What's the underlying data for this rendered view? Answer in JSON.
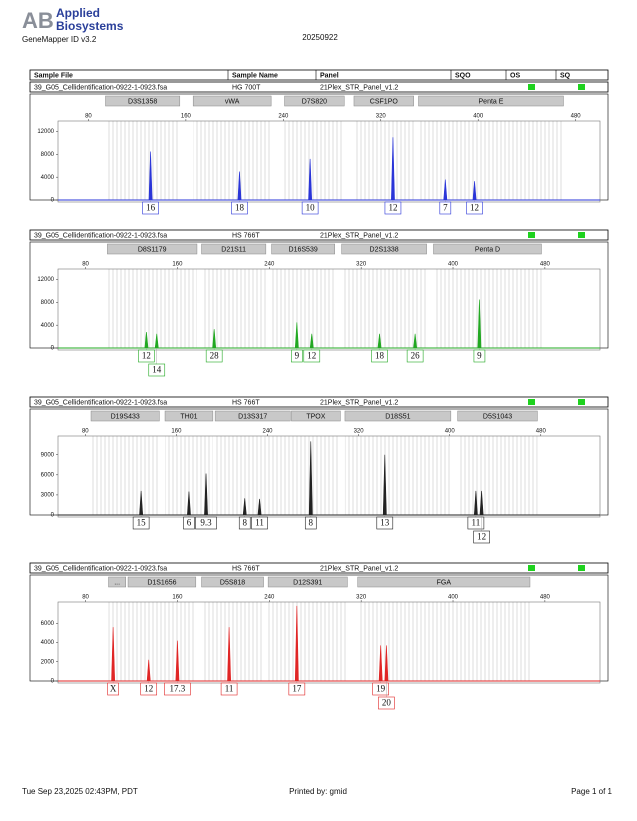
{
  "header": {
    "logo_mark": "AB",
    "logo_line1": "Applied",
    "logo_line2": "Biosystems",
    "software": "GeneMapper ID v3.2",
    "date": "20250922"
  },
  "columns": [
    "Sample File",
    "Sample Name",
    "Panel",
    "SQO",
    "OS",
    "SQ"
  ],
  "panels": [
    {
      "sample_file": "39_G05_Cellidentification-0922-1-0923.fsa",
      "sample_name": "HG 700T",
      "panel": "21Plex_STR_Panel_v1.2",
      "color": "#2a35d8",
      "xlim": [
        55,
        500
      ],
      "xticks": [
        80,
        160,
        240,
        320,
        400,
        480
      ],
      "ylim": [
        0,
        13500
      ],
      "yticks": [
        0,
        4000,
        8000,
        12000
      ],
      "markers": [
        {
          "name": "D3S1358",
          "start": 94,
          "end": 155
        },
        {
          "name": "vWA",
          "start": 166,
          "end": 230
        },
        {
          "name": "D7S820",
          "start": 241,
          "end": 290
        },
        {
          "name": "CSF1PO",
          "start": 298,
          "end": 347
        },
        {
          "name": "Penta E",
          "start": 351,
          "end": 470
        }
      ],
      "peaks": [
        {
          "x": 131,
          "height": 8500,
          "allele": "16"
        },
        {
          "x": 204,
          "height": 5000,
          "allele": "18"
        },
        {
          "x": 262,
          "height": 7200,
          "allele": "10"
        },
        {
          "x": 330,
          "height": 11000,
          "allele": "12"
        },
        {
          "x": 373,
          "height": 3600,
          "allele": "7"
        },
        {
          "x": 397,
          "height": 3300,
          "allele": "12"
        }
      ]
    },
    {
      "sample_file": "39_G05_Cellidentification-0922-1-0923.fsa",
      "sample_name": "HS 766T",
      "panel": "21Plex_STR_Panel_v1.2",
      "color": "#22a822",
      "xlim": [
        56,
        528
      ],
      "xticks": [
        80,
        160,
        240,
        320,
        400,
        480
      ],
      "ylim": [
        0,
        13500
      ],
      "yticks": [
        0,
        4000,
        8000,
        12000
      ],
      "markers": [
        {
          "name": "D8S1179",
          "start": 99,
          "end": 177
        },
        {
          "name": "D21S11",
          "start": 181,
          "end": 237
        },
        {
          "name": "D16S539",
          "start": 242,
          "end": 297
        },
        {
          "name": "D2S1338",
          "start": 303,
          "end": 377
        },
        {
          "name": "Penta D",
          "start": 383,
          "end": 477
        }
      ],
      "peaks": [
        {
          "x": 133,
          "height": 2800,
          "allele": "12"
        },
        {
          "x": 142,
          "height": 2500,
          "allele": "14"
        },
        {
          "x": 192,
          "height": 3300,
          "allele": "28"
        },
        {
          "x": 264,
          "height": 4500,
          "allele": "9"
        },
        {
          "x": 277,
          "height": 2500,
          "allele": "12"
        },
        {
          "x": 336,
          "height": 2500,
          "allele": "18"
        },
        {
          "x": 367,
          "height": 2500,
          "allele": "26"
        },
        {
          "x": 423,
          "height": 8500,
          "allele": "9"
        }
      ]
    },
    {
      "sample_file": "39_G05_Cellidentification-0922-1-0923.fsa",
      "sample_name": "HS 766T",
      "panel": "21Plex_STR_Panel_v1.2",
      "color": "#222222",
      "xlim": [
        56,
        532
      ],
      "xticks": [
        80,
        160,
        240,
        320,
        400,
        480
      ],
      "ylim": [
        0,
        11500
      ],
      "yticks": [
        0,
        3000,
        6000,
        9000
      ],
      "markers": [
        {
          "name": "D19S433",
          "start": 85,
          "end": 145
        },
        {
          "name": "TH01",
          "start": 150,
          "end": 192
        },
        {
          "name": "D13S317",
          "start": 194,
          "end": 260
        },
        {
          "name": "TPOX",
          "start": 261,
          "end": 304
        },
        {
          "name": "D18S51",
          "start": 308,
          "end": 401
        },
        {
          "name": "D5S1043",
          "start": 407,
          "end": 477
        }
      ],
      "peaks": [
        {
          "x": 129,
          "height": 3600,
          "allele": "15"
        },
        {
          "x": 171,
          "height": 3500,
          "allele": "6"
        },
        {
          "x": 186,
          "height": 6200,
          "allele": "9.3"
        },
        {
          "x": 220,
          "height": 2500,
          "allele": "8"
        },
        {
          "x": 233,
          "height": 2400,
          "allele": "11"
        },
        {
          "x": 278,
          "height": 11000,
          "allele": "8"
        },
        {
          "x": 343,
          "height": 9000,
          "allele": "13"
        },
        {
          "x": 423,
          "height": 3600,
          "allele": "11"
        },
        {
          "x": 428,
          "height": 3600,
          "allele": "12"
        }
      ]
    },
    {
      "sample_file": "39_G05_Cellidentification-0922-1-0923.fsa",
      "sample_name": "HS 766T",
      "panel": "21Plex_STR_Panel_v1.2",
      "color": "#e02525",
      "xlim": [
        56,
        528
      ],
      "xticks": [
        80,
        160,
        240,
        320,
        400,
        480
      ],
      "ylim": [
        0,
        8000
      ],
      "yticks": [
        0,
        2000,
        4000,
        6000
      ],
      "markers": [
        {
          "name": "...",
          "start": 100,
          "end": 115
        },
        {
          "name": "D1S1656",
          "start": 117,
          "end": 176
        },
        {
          "name": "D5S818",
          "start": 181,
          "end": 235
        },
        {
          "name": "D12S391",
          "start": 239,
          "end": 308
        },
        {
          "name": "FGA",
          "start": 317,
          "end": 467
        }
      ],
      "peaks": [
        {
          "x": 104,
          "height": 5600,
          "allele": "X"
        },
        {
          "x": 135,
          "height": 2200,
          "allele": "12"
        },
        {
          "x": 160,
          "height": 4200,
          "allele": "17.3"
        },
        {
          "x": 205,
          "height": 5600,
          "allele": "11"
        },
        {
          "x": 264,
          "height": 7800,
          "allele": "17"
        },
        {
          "x": 337,
          "height": 3700,
          "allele": "19"
        },
        {
          "x": 342,
          "height": 3700,
          "allele": "20"
        }
      ]
    }
  ],
  "footer": {
    "timestamp": "Tue Sep 23,2025 02:43PM, PDT",
    "printed_by": "Printed by: gmid",
    "page": "Page 1 of 1"
  }
}
